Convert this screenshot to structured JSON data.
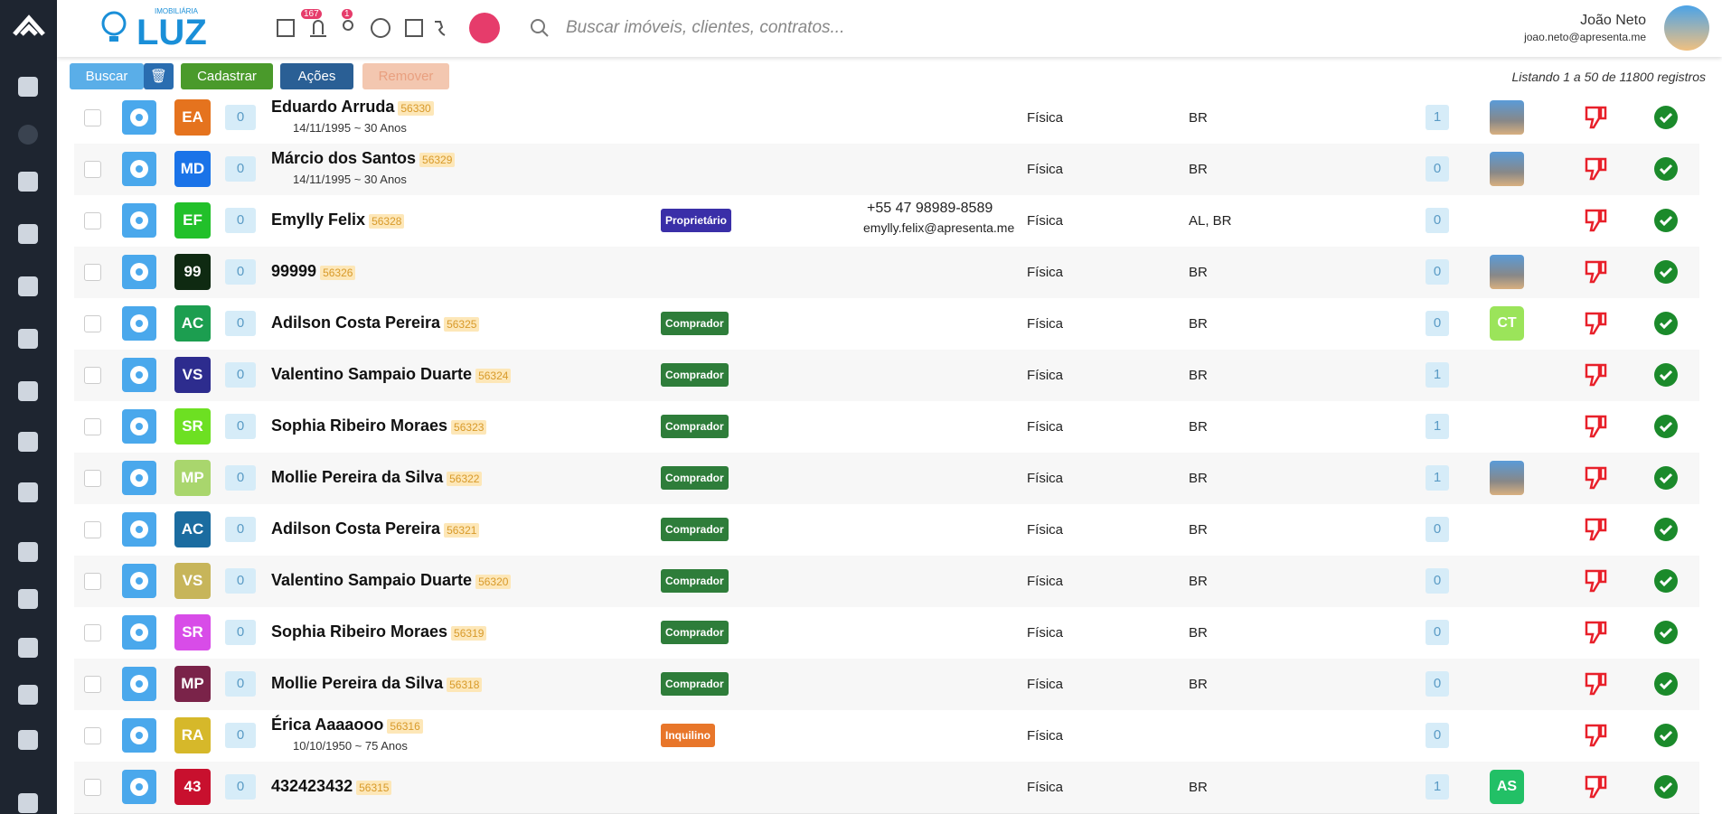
{
  "header": {
    "logo_small": "IMOBILIÁRIA",
    "logo": "LUZ",
    "notifications": "167",
    "users_badge": "1",
    "search_placeholder": "Buscar imóveis, clientes, contratos...",
    "user_name": "João Neto",
    "user_email": "joao.neto@apresenta.me"
  },
  "toolbar": {
    "search": "Buscar",
    "add": "Cadastrar",
    "actions": "Ações",
    "remove": "Remover",
    "listing": "Listando 1 a 50 de 11800 registros"
  },
  "table": {
    "rows": [
      {
        "initials": "EA",
        "color": "#e5731e",
        "count": "0",
        "name": "Eduardo Arruda",
        "id": "56330",
        "birth": "14/11/1995 ~ 30 Anos",
        "kind": "Física",
        "country": "BR",
        "num": "1",
        "thumb": true
      },
      {
        "initials": "MD",
        "color": "#1a73e8",
        "count": "0",
        "name": "Márcio dos Santos",
        "id": "56329",
        "birth": "14/11/1995 ~ 30 Anos",
        "kind": "Física",
        "country": "BR",
        "num": "0",
        "thumb": true
      },
      {
        "initials": "EF",
        "color": "#22c02a",
        "count": "0",
        "name": "Emylly Felix",
        "id": "56328",
        "tag": "Proprietário",
        "tag_color": "#3a2fa8",
        "phone": "+55 47 98989-8589",
        "email": "emylly.felix@apresenta.me",
        "kind": "Física",
        "country": "AL, BR",
        "num": "0"
      },
      {
        "initials": "99",
        "color": "#0f2a12",
        "count": "0",
        "name": "99999",
        "id": "56326",
        "kind": "Física",
        "country": "BR",
        "num": "0",
        "thumb": true
      },
      {
        "initials": "AC",
        "color": "#1c9e50",
        "count": "0",
        "name": "Adilson Costa Pereira",
        "id": "56325",
        "tag": "Comprador",
        "tag_color": "#2e7d3a",
        "kind": "Física",
        "country": "BR",
        "num": "0",
        "photo": "CT",
        "photo_color": "#9be45a"
      },
      {
        "initials": "VS",
        "color": "#2d2c8e",
        "count": "0",
        "name": "Valentino Sampaio Duarte",
        "id": "56324",
        "tag": "Comprador",
        "tag_color": "#2e7d3a",
        "kind": "Física",
        "country": "BR",
        "num": "1"
      },
      {
        "initials": "SR",
        "color": "#6de022",
        "count": "0",
        "name": "Sophia Ribeiro Moraes",
        "id": "56323",
        "tag": "Comprador",
        "tag_color": "#2e7d3a",
        "kind": "Física",
        "country": "BR",
        "num": "1"
      },
      {
        "initials": "MP",
        "color": "#a9d66d",
        "count": "0",
        "name": "Mollie Pereira da Silva",
        "id": "56322",
        "tag": "Comprador",
        "tag_color": "#2e7d3a",
        "kind": "Física",
        "country": "BR",
        "num": "1",
        "thumb": true
      },
      {
        "initials": "AC",
        "color": "#1b6ca0",
        "count": "0",
        "name": "Adilson Costa Pereira",
        "id": "56321",
        "tag": "Comprador",
        "tag_color": "#2e7d3a",
        "kind": "Física",
        "country": "BR",
        "num": "0"
      },
      {
        "initials": "VS",
        "color": "#c7b55a",
        "count": "0",
        "name": "Valentino Sampaio Duarte",
        "id": "56320",
        "tag": "Comprador",
        "tag_color": "#2e7d3a",
        "kind": "Física",
        "country": "BR",
        "num": "0"
      },
      {
        "initials": "SR",
        "color": "#d84ce8",
        "count": "0",
        "name": "Sophia Ribeiro Moraes",
        "id": "56319",
        "tag": "Comprador",
        "tag_color": "#2e7d3a",
        "kind": "Física",
        "country": "BR",
        "num": "0"
      },
      {
        "initials": "MP",
        "color": "#7a2349",
        "count": "0",
        "name": "Mollie Pereira da Silva",
        "id": "56318",
        "tag": "Comprador",
        "tag_color": "#2e7d3a",
        "kind": "Física",
        "country": "BR",
        "num": "0"
      },
      {
        "initials": "RA",
        "color": "#d6b82a",
        "count": "0",
        "name": "Érica Aaaaooo",
        "id": "56316",
        "birth": "10/10/1950 ~ 75 Anos",
        "tag": "Inquilino",
        "tag_color": "#e8762a",
        "kind": "Física",
        "num": "0"
      },
      {
        "initials": "43",
        "color": "#c8102e",
        "count": "0",
        "name": "432423432",
        "id": "56315",
        "kind": "Física",
        "country": "BR",
        "num": "1",
        "photo": "AS",
        "photo_color": "#22c066"
      }
    ]
  }
}
